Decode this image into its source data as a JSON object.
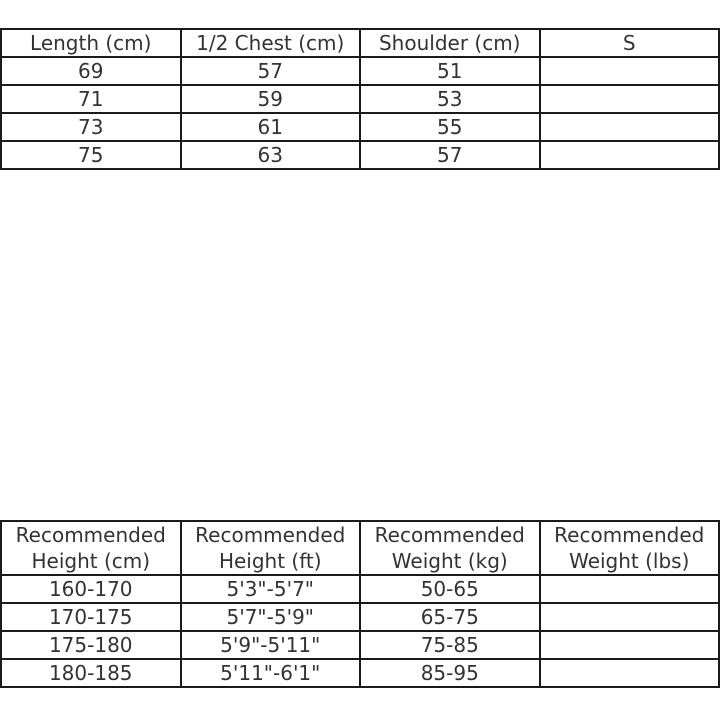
{
  "measurements_table": {
    "headers": [
      "Length (cm)",
      "1/2 Chest (cm)",
      "Shoulder (cm)",
      "S"
    ],
    "rows": [
      [
        "69",
        "57",
        "51",
        ""
      ],
      [
        "71",
        "59",
        "53",
        ""
      ],
      [
        "73",
        "61",
        "55",
        ""
      ],
      [
        "75",
        "63",
        "57",
        ""
      ]
    ]
  },
  "recommendation_table": {
    "headers": [
      "Recommended Height (cm)",
      "Recommended Height (ft)",
      "Recommended Weight (kg)",
      "Recommended Weight (lbs)"
    ],
    "rows": [
      [
        "160-170",
        "5'3\"-5'7\"",
        "50-65",
        ""
      ],
      [
        "170-175",
        "5'7\"-5'9\"",
        "65-75",
        ""
      ],
      [
        "175-180",
        "5'9\"-5'11\"",
        "75-85",
        ""
      ],
      [
        "180-185",
        "5'11\"-6'1\"",
        "85-95",
        ""
      ]
    ]
  }
}
